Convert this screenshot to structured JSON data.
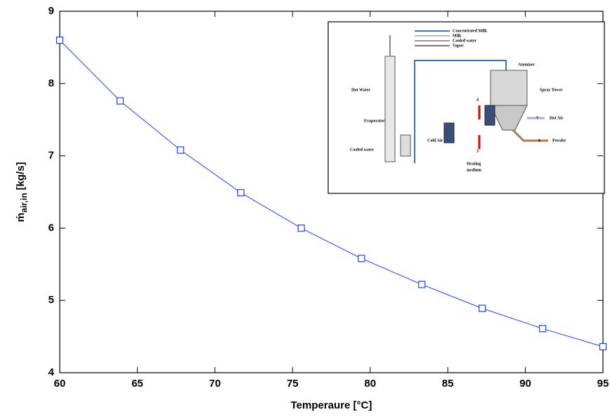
{
  "chart_data": {
    "type": "line",
    "x_label": "Temperaure [°C]",
    "y_label": {
      "symbol": "ṁ",
      "subscript": "air,in",
      "unit": "[kg/s]"
    },
    "x": [
      60,
      63.89,
      67.78,
      71.67,
      75.56,
      79.44,
      83.33,
      87.22,
      91.11,
      95
    ],
    "values": [
      8.6,
      7.76,
      7.08,
      6.49,
      6.0,
      5.58,
      5.22,
      4.89,
      4.61,
      4.36
    ],
    "color": "#1f3fff",
    "marker": "square",
    "xlim": [
      60,
      95
    ],
    "xticks": [
      60,
      65,
      70,
      75,
      80,
      85,
      90,
      95
    ],
    "ylim": [
      4,
      9
    ],
    "yticks": [
      4,
      5,
      6,
      7,
      8,
      9
    ],
    "grid": false
  },
  "inset": {
    "legend": [
      "Concentrated Milk",
      "Milk",
      "Cooled water",
      "Vapor"
    ],
    "labels": [
      "Atomizer",
      "Spray Tower",
      "Hot Water",
      "Evaporator",
      "Cooled water",
      "Cold Air",
      "Heating",
      "medium",
      "Hot Air",
      "Powder",
      "4",
      "3",
      "7",
      "6"
    ]
  }
}
